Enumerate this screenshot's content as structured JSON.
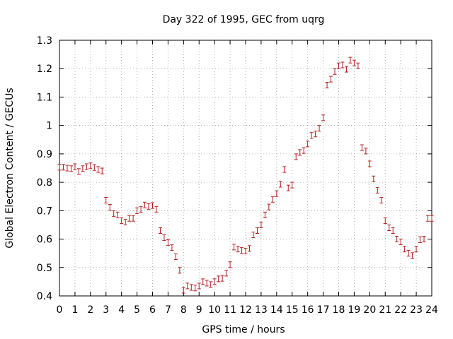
{
  "chart_data": {
    "type": "scatter",
    "title": "Day 322 of 1995, GEC from uqrg",
    "xlabel": "GPS time / hours",
    "ylabel": "Global Electron Content / GECUs",
    "xlim": [
      0,
      24
    ],
    "ylim": [
      0.4,
      1.3
    ],
    "grid": true,
    "xticks": [
      0,
      1,
      2,
      3,
      4,
      5,
      6,
      7,
      8,
      9,
      10,
      11,
      12,
      13,
      14,
      15,
      16,
      17,
      18,
      19,
      20,
      21,
      22,
      23,
      24
    ],
    "yticks": [
      0.4,
      0.5,
      0.6,
      0.7,
      0.8,
      0.9,
      1.0,
      1.1,
      1.2,
      1.3
    ],
    "ytick_labels": [
      "0.4",
      "0.5",
      "0.6",
      "0.7",
      "0.8",
      "0.9",
      "1",
      "1.1",
      "1.2",
      "1.3"
    ],
    "marker_color": "#b41e1e",
    "error": 0.01,
    "series": [
      {
        "name": "GEC",
        "x": [
          0.0,
          0.25,
          0.5,
          0.75,
          1.0,
          1.25,
          1.5,
          1.75,
          2.0,
          2.25,
          2.5,
          2.75,
          3.0,
          3.25,
          3.5,
          3.75,
          4.0,
          4.25,
          4.5,
          4.75,
          5.0,
          5.25,
          5.5,
          5.75,
          6.0,
          6.25,
          6.5,
          6.75,
          7.0,
          7.25,
          7.5,
          7.75,
          8.0,
          8.25,
          8.5,
          8.75,
          9.0,
          9.25,
          9.5,
          9.75,
          10.0,
          10.25,
          10.5,
          10.75,
          11.0,
          11.25,
          11.5,
          11.75,
          12.0,
          12.25,
          12.5,
          12.75,
          13.0,
          13.25,
          13.5,
          13.75,
          14.0,
          14.25,
          14.5,
          14.75,
          15.0,
          15.25,
          15.5,
          15.75,
          16.0,
          16.25,
          16.5,
          16.75,
          17.0,
          17.25,
          17.5,
          17.75,
          18.0,
          18.25,
          18.5,
          18.75,
          19.0,
          19.25,
          19.5,
          19.75,
          20.0,
          20.25,
          20.5,
          20.75,
          21.0,
          21.25,
          21.5,
          21.75,
          22.0,
          22.25,
          22.5,
          22.75,
          23.0,
          23.25,
          23.5,
          23.75,
          24.0
        ],
        "y": [
          0.853,
          0.853,
          0.85,
          0.848,
          0.855,
          0.838,
          0.848,
          0.855,
          0.858,
          0.852,
          0.845,
          0.84,
          0.737,
          0.712,
          0.69,
          0.685,
          0.665,
          0.66,
          0.673,
          0.673,
          0.7,
          0.705,
          0.72,
          0.715,
          0.718,
          0.705,
          0.63,
          0.605,
          0.588,
          0.57,
          0.538,
          0.49,
          0.42,
          0.435,
          0.43,
          0.428,
          0.435,
          0.45,
          0.445,
          0.44,
          0.45,
          0.46,
          0.462,
          0.48,
          0.51,
          0.572,
          0.565,
          0.56,
          0.558,
          0.567,
          0.615,
          0.63,
          0.65,
          0.685,
          0.713,
          0.74,
          0.76,
          0.793,
          0.845,
          0.78,
          0.79,
          0.89,
          0.905,
          0.912,
          0.935,
          0.965,
          0.97,
          0.99,
          1.027,
          1.142,
          1.163,
          1.19,
          1.21,
          1.213,
          1.198,
          1.23,
          1.22,
          1.21,
          0.922,
          0.91,
          0.865,
          0.812,
          0.772,
          0.737,
          0.665,
          0.64,
          0.63,
          0.6,
          0.59,
          0.565,
          0.55,
          0.542,
          0.565,
          0.598,
          0.6,
          0.673,
          0.673
        ]
      }
    ]
  }
}
